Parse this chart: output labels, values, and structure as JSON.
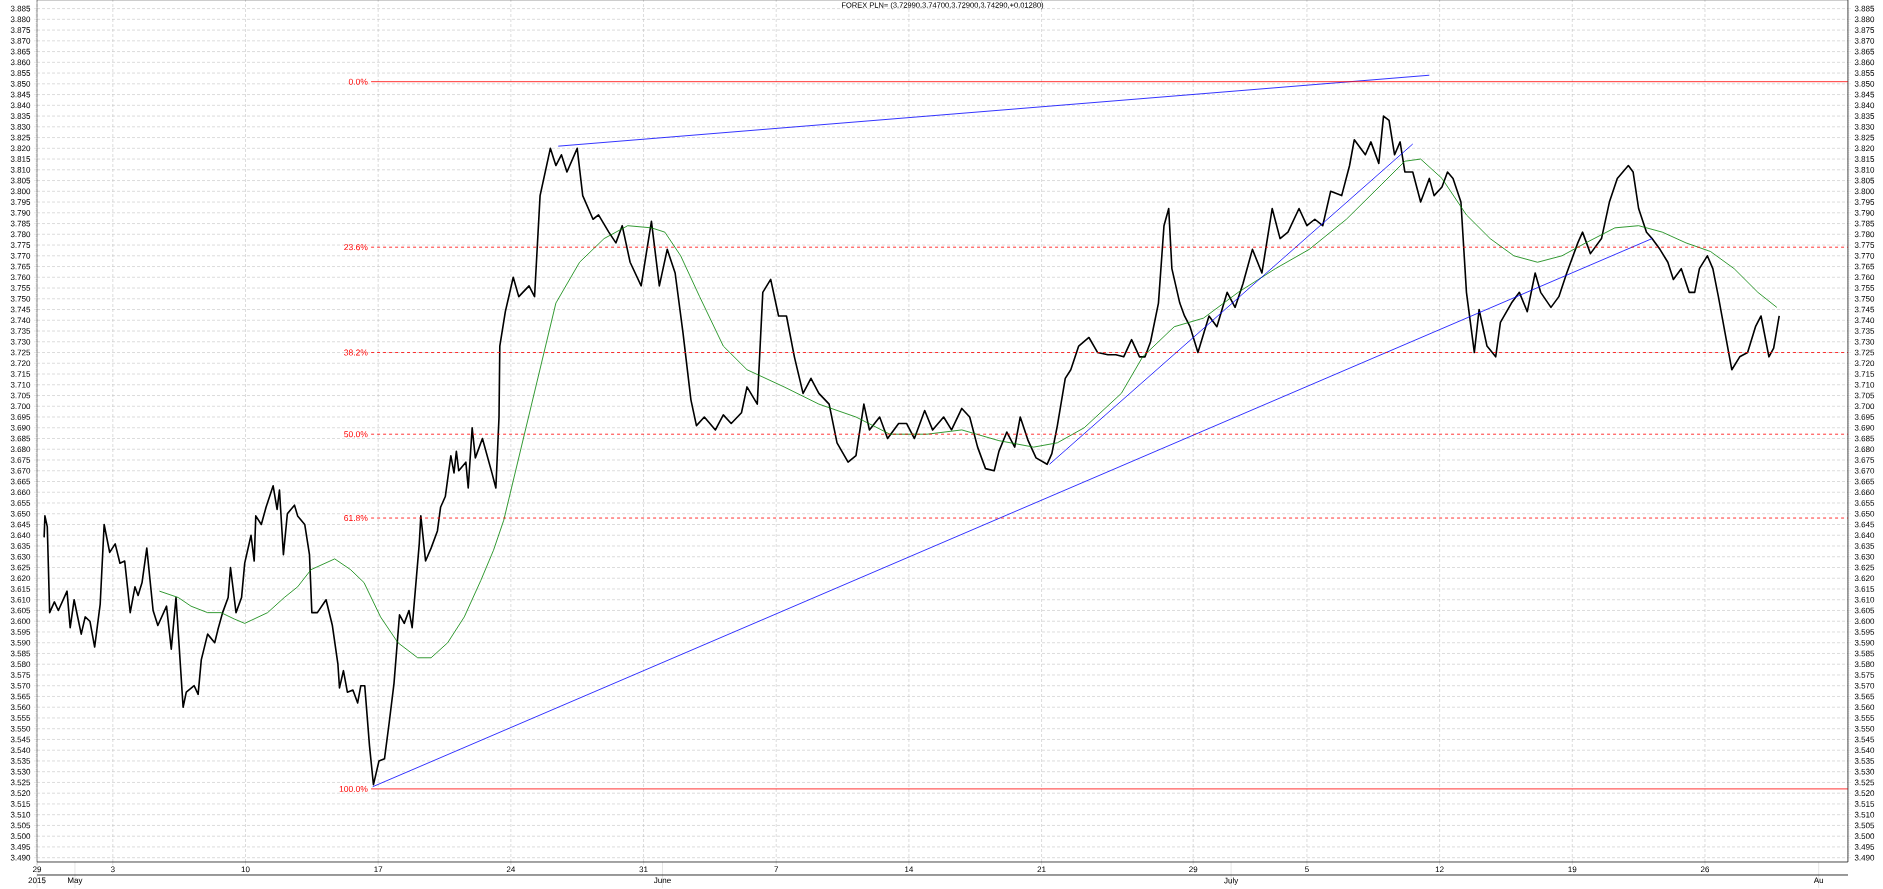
{
  "chart_data": {
    "type": "line",
    "title": "FOREX PLN= (3.72990,3.74700,3.72900,3.74290,+0.01280)",
    "grid": true,
    "marker": "none",
    "xlim": [
      "2015-04-29T00:00",
      "2015-08-02T13:00"
    ],
    "xticks": [
      {
        "value": "2015-04-29",
        "label": "29"
      },
      {
        "value": "2015-05-03",
        "label": "3"
      },
      {
        "value": "2015-05-10",
        "label": "10"
      },
      {
        "value": "2015-05-17",
        "label": "17"
      },
      {
        "value": "2015-05-24",
        "label": "24"
      },
      {
        "value": "2015-05-31",
        "label": "31"
      },
      {
        "value": "2015-06-07",
        "label": "7"
      },
      {
        "value": "2015-06-14",
        "label": "14"
      },
      {
        "value": "2015-06-21",
        "label": "21"
      },
      {
        "value": "2015-06-29",
        "label": "29"
      },
      {
        "value": "2015-07-05",
        "label": "5"
      },
      {
        "value": "2015-07-12",
        "label": "12"
      },
      {
        "value": "2015-07-19",
        "label": "19"
      },
      {
        "value": "2015-07-26",
        "label": "26"
      }
    ],
    "x2lim": [
      "2015-04-29T00:00",
      "2015-08-02T13:00"
    ],
    "x2ticks": [
      {
        "value": "2015-04-29",
        "label": "2015"
      },
      {
        "value": "2015-05-01",
        "label": "May"
      },
      {
        "value": "2015-06-01",
        "label": "June"
      },
      {
        "value": "2015-07-01",
        "label": "July"
      },
      {
        "value": "2015-08-01",
        "label": "Au"
      }
    ],
    "ylim": [
      3.488,
      3.889
    ],
    "yticks": [
      {
        "value": 3.49,
        "label": "3.490"
      },
      3.495,
      {
        "value": 3.5,
        "label": "3.500"
      },
      3.505,
      {
        "value": 3.51,
        "label": "3.510"
      },
      3.515,
      {
        "value": 3.52,
        "label": "3.520"
      },
      3.525,
      {
        "value": 3.53,
        "label": "3.530"
      },
      3.535,
      {
        "value": 3.54,
        "label": "3.540"
      },
      3.545,
      {
        "value": 3.55,
        "label": "3.550"
      },
      3.555,
      {
        "value": 3.56,
        "label": "3.560"
      },
      3.565,
      {
        "value": 3.57,
        "label": "3.570"
      },
      3.575,
      {
        "value": 3.58,
        "label": "3.580"
      },
      3.585,
      {
        "value": 3.59,
        "label": "3.590"
      },
      3.595,
      {
        "value": 3.6,
        "label": "3.600"
      },
      3.605,
      {
        "value": 3.61,
        "label": "3.610"
      },
      3.615,
      {
        "value": 3.62,
        "label": "3.620"
      },
      3.625,
      {
        "value": 3.63,
        "label": "3.630"
      },
      3.635,
      {
        "value": 3.64,
        "label": "3.640"
      },
      3.645,
      {
        "value": 3.65,
        "label": "3.650"
      },
      3.655,
      {
        "value": 3.66,
        "label": "3.660"
      },
      3.665,
      {
        "value": 3.67,
        "label": "3.670"
      },
      3.675,
      {
        "value": 3.68,
        "label": "3.680"
      },
      3.685,
      {
        "value": 3.69,
        "label": "3.690"
      },
      3.695,
      {
        "value": 3.7,
        "label": "3.700"
      },
      3.705,
      {
        "value": 3.71,
        "label": "3.710"
      },
      3.715,
      {
        "value": 3.72,
        "label": "3.720"
      },
      3.725,
      {
        "value": 3.73,
        "label": "3.730"
      },
      3.735,
      {
        "value": 3.74,
        "label": "3.740"
      },
      3.745,
      {
        "value": 3.75,
        "label": "3.750"
      },
      3.755,
      {
        "value": 3.76,
        "label": "3.760"
      },
      3.765,
      {
        "value": 3.77,
        "label": "3.770"
      },
      3.775,
      {
        "value": 3.78,
        "label": "3.780"
      },
      3.785,
      {
        "value": 3.79,
        "label": "3.790"
      },
      3.795,
      {
        "value": 3.8,
        "label": "3.800"
      },
      3.805,
      {
        "value": 3.81,
        "label": "3.810"
      },
      3.815,
      {
        "value": 3.82,
        "label": "3.820"
      },
      3.825,
      {
        "value": 3.83,
        "label": "3.830"
      },
      3.835,
      {
        "value": 3.84,
        "label": "3.840"
      },
      3.845,
      {
        "value": 3.85,
        "label": "3.850"
      },
      3.855,
      {
        "value": 3.86,
        "label": "3.860"
      },
      3.865,
      {
        "value": 3.87,
        "label": "3.870"
      },
      3.875,
      {
        "value": 3.88,
        "label": "3.880"
      },
      3.885
    ],
    "y2lim": [
      3.488,
      3.889
    ],
    "y2ticks": [
      {
        "value": 3.49,
        "label": "3.490"
      },
      3.495,
      {
        "value": 3.5,
        "label": "3.500"
      },
      3.505,
      {
        "value": 3.51,
        "label": "3.510"
      },
      3.515,
      {
        "value": 3.52,
        "label": "3.520"
      },
      3.525,
      {
        "value": 3.53,
        "label": "3.530"
      },
      3.535,
      {
        "value": 3.54,
        "label": "3.540"
      },
      3.545,
      {
        "value": 3.55,
        "label": "3.550"
      },
      3.555,
      {
        "value": 3.56,
        "label": "3.560"
      },
      3.565,
      {
        "value": 3.57,
        "label": "3.570"
      },
      3.575,
      {
        "value": 3.58,
        "label": "3.580"
      },
      3.585,
      {
        "value": 3.59,
        "label": "3.590"
      },
      3.595,
      {
        "value": 3.6,
        "label": "3.600"
      },
      3.605,
      {
        "value": 3.61,
        "label": "3.610"
      },
      3.615,
      {
        "value": 3.62,
        "label": "3.620"
      },
      3.625,
      {
        "value": 3.63,
        "label": "3.630"
      },
      3.635,
      {
        "value": 3.64,
        "label": "3.640"
      },
      3.645,
      {
        "value": 3.65,
        "label": "3.650"
      },
      3.655,
      {
        "value": 3.66,
        "label": "3.660"
      },
      3.665,
      {
        "value": 3.67,
        "label": "3.670"
      },
      3.675,
      {
        "value": 3.68,
        "label": "3.680"
      },
      3.685,
      {
        "value": 3.69,
        "label": "3.690"
      },
      3.695,
      {
        "value": 3.7,
        "label": "3.700"
      },
      3.705,
      {
        "value": 3.71,
        "label": "3.710"
      },
      3.715,
      {
        "value": 3.72,
        "label": "3.720"
      },
      3.725,
      {
        "value": 3.73,
        "label": "3.730"
      },
      3.735,
      {
        "value": 3.74,
        "label": "3.740"
      },
      3.745,
      {
        "value": 3.75,
        "label": "3.750"
      },
      3.755,
      {
        "value": 3.76,
        "label": "3.760"
      },
      3.765,
      {
        "value": 3.77,
        "label": "3.770"
      },
      3.775,
      {
        "value": 3.78,
        "label": "3.780"
      },
      3.785,
      {
        "value": 3.79,
        "label": "3.790"
      },
      3.795,
      {
        "value": 3.8,
        "label": "3.800"
      },
      3.805,
      {
        "value": 3.81,
        "label": "3.810"
      },
      3.815,
      {
        "value": 3.82,
        "label": "3.820"
      },
      3.825,
      {
        "value": 3.83,
        "label": "3.830"
      },
      3.835,
      {
        "value": 3.84,
        "label": "3.840"
      },
      3.845,
      {
        "value": 3.85,
        "label": "3.850"
      },
      3.855,
      {
        "value": 3.86,
        "label": "3.860"
      },
      3.865,
      {
        "value": 3.87,
        "label": "3.870"
      },
      3.875,
      {
        "value": 3.88,
        "label": "3.880"
      },
      3.885
    ],
    "series": [
      {
        "name": "0.0%",
        "color": "#ff0000",
        "line_style": "solid",
        "x": [
          "2015-05-16T15:00",
          "2015-08-02T13:00"
        ],
        "values": [
          3.851,
          3.851
        ]
      },
      {
        "name": "23.6%",
        "color": "#ff0000",
        "line_style": "dashed",
        "x": [
          "2015-05-16T15:00",
          "2015-08-02T13:00"
        ],
        "values": [
          3.774,
          3.774
        ]
      },
      {
        "name": "38.2%",
        "color": "#ff0000",
        "line_style": "dashed",
        "x": [
          "2015-05-16T15:00",
          "2015-08-02T13:00"
        ],
        "values": [
          3.725,
          3.725
        ]
      },
      {
        "name": "50.0%",
        "color": "#ff0000",
        "line_style": "dashed",
        "x": [
          "2015-05-16T15:00",
          "2015-08-02T13:00"
        ],
        "values": [
          3.687,
          3.687
        ]
      },
      {
        "name": "61.8%",
        "color": "#ff0000",
        "line_style": "dashed",
        "x": [
          "2015-05-16T15:00",
          "2015-08-02T13:00"
        ],
        "values": [
          3.648,
          3.648
        ]
      },
      {
        "name": "100.0%",
        "color": "#ff0000",
        "line_style": "solid",
        "x": [
          "2015-05-16T15:00",
          "2015-08-02T13:00"
        ],
        "values": [
          3.522,
          3.522
        ]
      },
      {
        "color": "#0000ff",
        "x": [
          "2015-05-16T17:00",
          "2015-07-23T05:00"
        ],
        "values": [
          3.523,
          3.778
        ]
      },
      {
        "color": "#0000ff",
        "x": [
          "2015-05-26T12:00",
          "2015-07-11T11:00"
        ],
        "values": [
          3.821,
          3.854
        ]
      },
      {
        "color": "#0000ff",
        "x": [
          "2015-06-21T10:00",
          "2015-07-10T14:00"
        ],
        "values": [
          3.673,
          3.822
        ]
      },
      {
        "color": "#008000",
        "x": [
          "2015-05-05T11:00",
          "2015-05-06T11:00",
          "2015-05-07T03:00",
          "2015-05-08T00:00",
          "2015-05-08T17:00",
          "2015-05-09T10:00",
          "2015-05-09T23:00",
          "2015-05-11T04:00",
          "2015-05-12T01:00",
          "2015-05-12T18:00",
          "2015-05-13T11:00",
          "2015-05-14T17:00",
          "2015-05-15T13:00",
          "2015-05-16T06:00",
          "2015-05-17T03:00",
          "2015-05-18T01:00",
          "2015-05-19T02:00",
          "2015-05-19T19:00",
          "2015-05-20T16:00",
          "2015-05-21T13:00",
          "2015-05-22T10:00",
          "2015-05-23T02:00",
          "2015-05-23T15:00",
          "2015-05-26T09:00",
          "2015-05-27T15:00",
          "2015-05-28T22:00",
          "2015-05-30T04:00",
          "2015-05-31T10:00",
          "2015-06-01T03:00",
          "2015-06-01T23:00",
          "2015-06-02T23:00",
          "2015-06-04T05:00",
          "2015-06-05T11:00",
          "2015-06-07T10:00",
          "2015-06-09T06:00",
          "2015-06-11T05:00",
          "2015-06-13T00:00",
          "2015-06-14T23:00",
          "2015-06-16T19:00",
          "2015-06-18T18:00",
          "2015-06-20T14:00",
          "2015-06-21T20:00",
          "2015-06-23T06:00",
          "2015-06-25T05:00",
          "2015-06-26T08:00",
          "2015-06-28T00:00",
          "2015-06-29T13:00",
          "2015-07-01T09:00",
          "2015-07-03T08:00",
          "2015-07-05T03:00",
          "2015-07-07T02:00",
          "2015-07-08T22:00",
          "2015-07-10T04:00",
          "2015-07-11T00:00",
          "2015-07-12T03:00",
          "2015-07-13T10:00",
          "2015-07-14T16:00",
          "2015-07-15T22:00",
          "2015-07-17T04:00",
          "2015-07-18T11:00",
          "2015-07-19T17:00",
          "2015-07-21T06:00",
          "2015-07-22T12:00",
          "2015-07-23T18:00",
          "2015-07-25T00:00",
          "2015-07-26T07:00",
          "2015-07-27T13:00",
          "2015-07-28T19:00",
          "2015-07-29T19:00"
        ],
        "values": [
          3.614,
          3.611,
          3.607,
          3.604,
          3.604,
          3.601,
          3.599,
          3.604,
          3.611,
          3.616,
          3.624,
          3.629,
          3.624,
          3.618,
          3.602,
          3.59,
          3.583,
          3.583,
          3.59,
          3.602,
          3.619,
          3.633,
          3.647,
          3.748,
          3.767,
          3.778,
          3.784,
          3.783,
          3.781,
          3.77,
          3.751,
          3.728,
          3.717,
          3.709,
          3.701,
          3.695,
          3.687,
          3.687,
          3.689,
          3.684,
          3.681,
          3.683,
          3.69,
          3.706,
          3.723,
          3.737,
          3.741,
          3.753,
          3.764,
          3.773,
          3.787,
          3.803,
          3.814,
          3.815,
          3.806,
          3.789,
          3.778,
          3.77,
          3.767,
          3.77,
          3.776,
          3.783,
          3.784,
          3.781,
          3.776,
          3.772,
          3.764,
          3.753,
          3.746
        ]
      },
      {
        "color": "#000000",
        "x": [
          "2015-04-29T09:00",
          "2015-04-29T10:00",
          "2015-04-29T13:00",
          "2015-04-29T16:00",
          "2015-04-29T22:00",
          "2015-04-30T03:00",
          "2015-04-30T14:00",
          "2015-04-30T18:00",
          "2015-04-30T23:00",
          "2015-05-01T08:00",
          "2015-05-01T13:00",
          "2015-05-01T19:00",
          "2015-05-02T01:00",
          "2015-05-02T08:00",
          "2015-05-02T13:00",
          "2015-05-02T20:00",
          "2015-05-03T03:00",
          "2015-05-03T09:00",
          "2015-05-03T15:00",
          "2015-05-03T22:00",
          "2015-05-04T04:00",
          "2015-05-04T08:00",
          "2015-05-04T13:00",
          "2015-05-04T19:00",
          "2015-05-05T03:00",
          "2015-05-05T09:00",
          "2015-05-05T20:00",
          "2015-05-06T02:00",
          "2015-05-06T08:00",
          "2015-05-06T17:00",
          "2015-05-06T21:00",
          "2015-05-07T07:00",
          "2015-05-07T12:00",
          "2015-05-07T16:00",
          "2015-05-08T00:00",
          "2015-05-08T09:00",
          "2015-05-08T13:00",
          "2015-05-08T19:00",
          "2015-05-09T02:00",
          "2015-05-09T05:00",
          "2015-05-09T12:00",
          "2015-05-09T19:00",
          "2015-05-09T23:00",
          "2015-05-10T07:00",
          "2015-05-10T11:00",
          "2015-05-10T13:00",
          "2015-05-10T20:00",
          "2015-05-11T02:00",
          "2015-05-11T11:00",
          "2015-05-11T16:00",
          "2015-05-11T19:00",
          "2015-05-12T00:00",
          "2015-05-12T05:00",
          "2015-05-12T14:00",
          "2015-05-12T18:00",
          "2015-05-13T03:00",
          "2015-05-13T09:00",
          "2015-05-13T12:00",
          "2015-05-13T19:00",
          "2015-05-14T06:00",
          "2015-05-14T14:00",
          "2015-05-14T21:00",
          "2015-05-14T23:00",
          "2015-05-15T04:00",
          "2015-05-15T09:00",
          "2015-05-15T16:00",
          "2015-05-15T22:00",
          "2015-05-16T02:00",
          "2015-05-16T07:00",
          "2015-05-16T13:00",
          "2015-05-16T18:00",
          "2015-05-17T01:00",
          "2015-05-17T08:00",
          "2015-05-17T14:00",
          "2015-05-17T20:00",
          "2015-05-18T03:00",
          "2015-05-18T09:00",
          "2015-05-18T15:00",
          "2015-05-18T19:00",
          "2015-05-19T04:00",
          "2015-05-19T06:00",
          "2015-05-19T12:00",
          "2015-05-19T19:00",
          "2015-05-20T03:00",
          "2015-05-20T07:00",
          "2015-05-20T13:00",
          "2015-05-20T20:00",
          "2015-05-21T00:00",
          "2015-05-21T03:00",
          "2015-05-21T06:00",
          "2015-05-21T15:00",
          "2015-05-21T18:00",
          "2015-05-21T23:00",
          "2015-05-22T03:00",
          "2015-05-22T12:00",
          "2015-05-23T00:00",
          "2015-05-23T05:00",
          "2015-05-23T09:00",
          "2015-05-23T10:00",
          "2015-05-23T17:00",
          "2015-05-24T03:00",
          "2015-05-24T10:00",
          "2015-05-24T23:00",
          "2015-05-25T06:00",
          "2015-05-25T13:00",
          "2015-05-26T02:00",
          "2015-05-26T09:00",
          "2015-05-26T16:00",
          "2015-05-26T23:00",
          "2015-05-27T12:00",
          "2015-05-27T19:00",
          "2015-05-28T08:00",
          "2015-05-28T15:00",
          "2015-05-29T04:00",
          "2015-05-29T13:00",
          "2015-05-29T21:00",
          "2015-05-30T07:00",
          "2015-05-30T21:00",
          "2015-05-31T03:00",
          "2015-05-31T10:00",
          "2015-05-31T20:00",
          "2015-06-01T06:00",
          "2015-06-01T16:00",
          "2015-06-02T02:00",
          "2015-06-02T12:00",
          "2015-06-02T19:00",
          "2015-06-03T05:00",
          "2015-06-03T19:00",
          "2015-06-04T05:00",
          "2015-06-04T15:00",
          "2015-06-05T04:00",
          "2015-06-05T11:00",
          "2015-06-06T00:00",
          "2015-06-06T07:00",
          "2015-06-06T17:00",
          "2015-06-07T03:00",
          "2015-06-07T13:00",
          "2015-06-07T23:00",
          "2015-06-08T10:00",
          "2015-06-08T20:00",
          "2015-06-09T06:00",
          "2015-06-09T19:00",
          "2015-06-10T05:00",
          "2015-06-10T19:00",
          "2015-06-11T05:00",
          "2015-06-11T15:00",
          "2015-06-11T22:00",
          "2015-06-12T11:00",
          "2015-06-12T21:00",
          "2015-06-13T11:00",
          "2015-06-13T21:00",
          "2015-06-14T07:00",
          "2015-06-14T20:00",
          "2015-06-15T06:00",
          "2015-06-15T20:00",
          "2015-06-16T06:00",
          "2015-06-16T19:00",
          "2015-06-17T05:00",
          "2015-06-17T15:00",
          "2015-06-18T01:00",
          "2015-06-18T12:00",
          "2015-06-18T18:00",
          "2015-06-19T04:00",
          "2015-06-19T14:00",
          "2015-06-19T21:00",
          "2015-06-20T07:00",
          "2015-06-20T17:00",
          "2015-06-21T07:00",
          "2015-06-21T13:00",
          "2015-06-21T20:00",
          "2015-06-22T06:00",
          "2015-06-22T13:00",
          "2015-06-22T23:00",
          "2015-06-23T12:00",
          "2015-06-23T23:00",
          "2015-06-24T12:00",
          "2015-06-24T22:00",
          "2015-06-25T08:00",
          "2015-06-25T18:00",
          "2015-06-26T04:00",
          "2015-06-26T11:00",
          "2015-06-26T18:00",
          "2015-06-27T04:00",
          "2015-06-27T11:00",
          "2015-06-27T17:00",
          "2015-06-27T21:00",
          "2015-06-28T07:00",
          "2015-06-28T13:00",
          "2015-06-28T20:00",
          "2015-06-29T06:00",
          "2015-06-29T20:00",
          "2015-06-30T06:00",
          "2015-06-30T19:00",
          "2015-07-01T05:00",
          "2015-07-01T15:00",
          "2015-07-02T03:00",
          "2015-07-02T15:00",
          "2015-07-03T04:00",
          "2015-07-03T14:00",
          "2015-07-04T00:00",
          "2015-07-04T14:00",
          "2015-07-05T00:00",
          "2015-07-05T10:00",
          "2015-07-05T20:00",
          "2015-07-06T06:00",
          "2015-07-06T20:00",
          "2015-07-07T06:00",
          "2015-07-07T12:00",
          "2015-07-08T02:00",
          "2015-07-08T09:00",
          "2015-07-08T19:00",
          "2015-07-09T01:00",
          "2015-07-09T08:00",
          "2015-07-09T15:00",
          "2015-07-09T22:00",
          "2015-07-10T04:00",
          "2015-07-10T14:00",
          "2015-07-11T00:00",
          "2015-07-11T11:00",
          "2015-07-11T17:00",
          "2015-07-12T03:00",
          "2015-07-12T10:00",
          "2015-07-12T17:00",
          "2015-07-13T03:00",
          "2015-07-13T10:00",
          "2015-07-13T20:00",
          "2015-07-14T02:00",
          "2015-07-14T12:00",
          "2015-07-14T23:00",
          "2015-07-15T05:00",
          "2015-07-15T19:00",
          "2015-07-16T05:00",
          "2015-07-16T15:00",
          "2015-07-17T01:00",
          "2015-07-17T08:00",
          "2015-07-17T21:00",
          "2015-07-18T07:00",
          "2015-07-18T17:00",
          "2015-07-19T07:00",
          "2015-07-19T13:00",
          "2015-07-19T23:00",
          "2015-07-20T13:00",
          "2015-07-20T23:00",
          "2015-07-21T09:00",
          "2015-07-21T23:00",
          "2015-07-22T05:00",
          "2015-07-22T12:00",
          "2015-07-22T22:00",
          "2015-07-23T05:00",
          "2015-07-23T15:00",
          "2015-07-24T01:00",
          "2015-07-24T08:00",
          "2015-07-24T18:00",
          "2015-07-25T04:00",
          "2015-07-25T11:00",
          "2015-07-25T17:00",
          "2015-07-26T03:00",
          "2015-07-26T10:00",
          "2015-07-26T17:00",
          "2015-07-27T03:00",
          "2015-07-27T10:00",
          "2015-07-27T20:00",
          "2015-07-28T06:00",
          "2015-07-28T16:00",
          "2015-07-28T23:00",
          "2015-07-29T09:00",
          "2015-07-29T15:00",
          "2015-07-29T22:00"
        ],
        "values": [
          3.639,
          3.649,
          3.644,
          3.604,
          3.609,
          3.605,
          3.614,
          3.597,
          3.61,
          3.594,
          3.602,
          3.6,
          3.588,
          3.608,
          3.645,
          3.632,
          3.636,
          3.627,
          3.628,
          3.604,
          3.616,
          3.612,
          3.618,
          3.634,
          3.605,
          3.598,
          3.607,
          3.587,
          3.611,
          3.56,
          3.567,
          3.57,
          3.566,
          3.582,
          3.594,
          3.59,
          3.596,
          3.604,
          3.611,
          3.625,
          3.604,
          3.611,
          3.627,
          3.64,
          3.628,
          3.649,
          3.645,
          3.653,
          3.663,
          3.652,
          3.661,
          3.631,
          3.65,
          3.654,
          3.649,
          3.645,
          3.631,
          3.604,
          3.604,
          3.61,
          3.598,
          3.58,
          3.569,
          3.577,
          3.567,
          3.568,
          3.562,
          3.57,
          3.57,
          3.542,
          3.524,
          3.535,
          3.536,
          3.553,
          3.571,
          3.603,
          3.599,
          3.605,
          3.597,
          3.636,
          3.649,
          3.628,
          3.634,
          3.642,
          3.653,
          3.658,
          3.677,
          3.669,
          3.679,
          3.67,
          3.674,
          3.662,
          3.69,
          3.676,
          3.685,
          3.669,
          3.662,
          3.695,
          3.728,
          3.744,
          3.76,
          3.751,
          3.756,
          3.751,
          3.798,
          3.82,
          3.812,
          3.817,
          3.809,
          3.82,
          3.798,
          3.787,
          3.789,
          3.781,
          3.776,
          3.784,
          3.767,
          3.756,
          3.77,
          3.786,
          3.756,
          3.773,
          3.762,
          3.734,
          3.703,
          3.691,
          3.695,
          3.689,
          3.696,
          3.692,
          3.697,
          3.709,
          3.701,
          3.753,
          3.759,
          3.742,
          3.742,
          3.723,
          3.706,
          3.713,
          3.706,
          3.701,
          3.683,
          3.674,
          3.677,
          3.701,
          3.689,
          3.695,
          3.685,
          3.692,
          3.692,
          3.685,
          3.698,
          3.689,
          3.695,
          3.689,
          3.699,
          3.695,
          3.681,
          3.671,
          3.67,
          3.679,
          3.688,
          3.681,
          3.695,
          3.684,
          3.676,
          3.673,
          3.678,
          3.691,
          3.713,
          3.717,
          3.728,
          3.732,
          3.725,
          3.724,
          3.724,
          3.723,
          3.731,
          3.723,
          3.723,
          3.73,
          3.748,
          3.784,
          3.792,
          3.764,
          3.748,
          3.742,
          3.737,
          3.725,
          3.742,
          3.737,
          3.753,
          3.746,
          3.757,
          3.773,
          3.762,
          3.792,
          3.778,
          3.781,
          3.792,
          3.784,
          3.787,
          3.784,
          3.8,
          3.798,
          3.812,
          3.824,
          3.817,
          3.823,
          3.813,
          3.835,
          3.833,
          3.817,
          3.823,
          3.809,
          3.809,
          3.795,
          3.806,
          3.798,
          3.802,
          3.809,
          3.806,
          3.795,
          3.753,
          3.725,
          3.745,
          3.728,
          3.723,
          3.739,
          3.748,
          3.753,
          3.744,
          3.762,
          3.753,
          3.746,
          3.751,
          3.762,
          3.776,
          3.781,
          3.771,
          3.778,
          3.795,
          3.806,
          3.812,
          3.809,
          3.792,
          3.781,
          3.778,
          3.773,
          3.767,
          3.759,
          3.764,
          3.753,
          3.753,
          3.764,
          3.77,
          3.764,
          3.751,
          3.731,
          3.717,
          3.723,
          3.725,
          3.737,
          3.742,
          3.723,
          3.727,
          3.742
        ]
      }
    ]
  }
}
